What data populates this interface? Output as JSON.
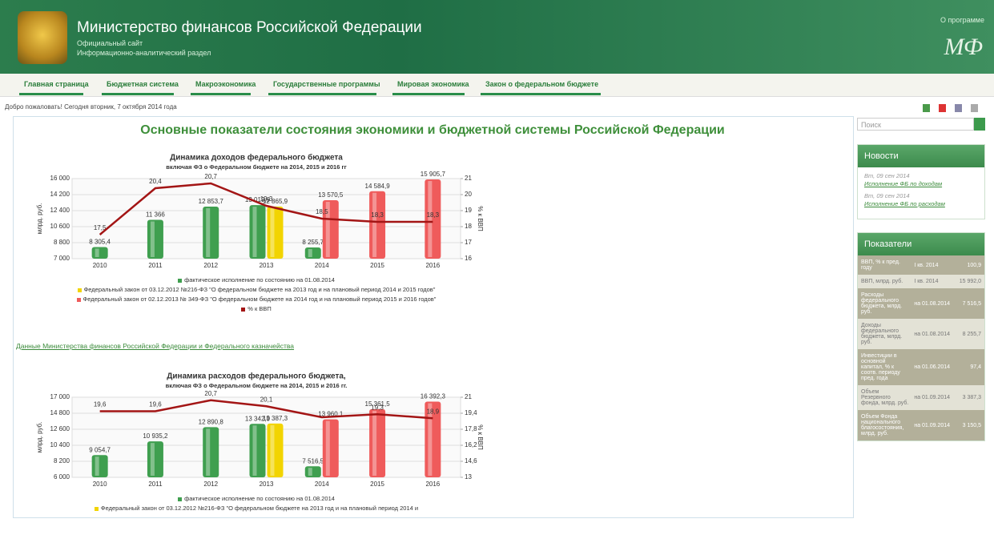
{
  "header": {
    "title": "Министерство финансов Российской Федерации",
    "subtitle": [
      "Официальный сайт",
      "Информационно-аналитический раздел"
    ],
    "about": "О программе",
    "logo": "МФ"
  },
  "nav": [
    "Главная страница",
    "Бюджетная система",
    "Макроэкономика",
    "Государственные программы",
    "Мировая экономика",
    "Закон о федеральном бюджете"
  ],
  "welcome": "Добро пожаловать! Сегодня вторник, 7 октября 2014 года",
  "heading": "Основные показатели состояния экономики и бюджетной системы Российской Федерации",
  "chart_data": [
    {
      "type": "bar",
      "title": "Динамика доходов федерального бюджета",
      "subtitle": "включая ФЗ о Федеральном бюджете на 2014, 2015 и 2016 гг",
      "y_label": "млрд. руб.",
      "y2_label": "% к ВВП",
      "categories": [
        "2010",
        "2011",
        "2012",
        "2013",
        "2014",
        "2015",
        "2016"
      ],
      "series": [
        {
          "name": "фактическое исполнение по состоянию на 01.08.2014",
          "type": "bar",
          "color": "#3f9f4f",
          "values": [
            8305.4,
            11366,
            12853.7,
            13019.9,
            8255.7,
            null,
            null
          ],
          "value_labels": [
            "8 305,4",
            "11 366",
            "12 853,7",
            "13 019,9",
            "8 255,7",
            null,
            null
          ]
        },
        {
          "name": "Федеральный закон от 03.12.2012 №216-ФЗ \"О федеральном бюджете на 2013 год и на плановый период 2014 и 2015 годов\"",
          "type": "bar",
          "color": "#f2d400",
          "values": [
            null,
            null,
            null,
            12865.9,
            null,
            null,
            null
          ],
          "value_labels": [
            null,
            null,
            null,
            "12 865,9",
            null,
            null,
            null
          ]
        },
        {
          "name": "Федеральный закон от 02.12.2013 № 349-ФЗ \"О федеральном бюджете на 2014 год и на плановый период 2015 и 2016 годов\"",
          "type": "bar",
          "color": "#ef5b5b",
          "values": [
            null,
            null,
            null,
            null,
            13570.5,
            14584.9,
            15905.7
          ],
          "value_labels": [
            null,
            null,
            null,
            null,
            "13 570,5",
            "14 584,9",
            "15 905,7"
          ]
        },
        {
          "name": "% к ВВП",
          "type": "line",
          "axis": "y2",
          "color": "#a31515",
          "values": [
            17.5,
            20.4,
            20.7,
            19.3,
            18.5,
            18.3,
            18.3
          ],
          "value_labels": [
            "17,5",
            "20,4",
            "20,7",
            "19,3",
            "18,5",
            "18,3",
            "18,3"
          ]
        }
      ],
      "ylim": [
        7000,
        16000
      ],
      "yticks": [
        {
          "value": 7000,
          "label": "7 000"
        },
        {
          "value": 8800,
          "label": "8 800"
        },
        {
          "value": 10600,
          "label": "10 600"
        },
        {
          "value": 12400,
          "label": "12 400"
        },
        {
          "value": 14200,
          "label": "14 200"
        },
        {
          "value": 16000,
          "label": "16 000"
        }
      ],
      "y2lim": [
        16,
        21
      ],
      "y2ticks": [
        16,
        17,
        18,
        19,
        20,
        21
      ],
      "grid": true
    },
    {
      "type": "bar",
      "title": "Динамика расходов федерального бюджета,",
      "subtitle": "включая ФЗ о Федеральном бюджете на 2014, 2015 и 2016 гг.",
      "y_label": "млрд. руб.",
      "y2_label": "% к ВВП",
      "categories": [
        "2010",
        "2011",
        "2012",
        "2013",
        "2014",
        "2015",
        "2016"
      ],
      "series": [
        {
          "name": "фактическое исполнение по состоянию на 01.08.2014",
          "type": "bar",
          "color": "#3f9f4f",
          "values": [
            9054.7,
            10935.2,
            12890.8,
            13342.9,
            7516.5,
            null,
            null
          ],
          "value_labels": [
            "9 054,7",
            "10 935,2",
            "12 890,8",
            "13 342,9",
            "7 516,5",
            null,
            null
          ]
        },
        {
          "name": "Федеральный закон от 03.12.2012 №216-ФЗ \"О федеральном бюджете на 2013 год и на плановый период 2014 и",
          "type": "bar",
          "color": "#f2d400",
          "values": [
            null,
            null,
            null,
            13387.3,
            null,
            null,
            null
          ],
          "value_labels": [
            null,
            null,
            null,
            "13 387,3",
            null,
            null,
            null
          ]
        },
        {
          "type": "bar",
          "color": "#ef5b5b",
          "values": [
            null,
            null,
            null,
            null,
            13960.1,
            15361.5,
            16392.3
          ],
          "value_labels": [
            null,
            null,
            null,
            null,
            "13 960,1",
            "15 361,5",
            "16 392,3"
          ]
        },
        {
          "type": "line",
          "axis": "y2",
          "color": "#a31515",
          "values": [
            19.6,
            19.6,
            20.7,
            20.1,
            19,
            19.3,
            18.9
          ],
          "value_labels": [
            "19,6",
            "19,6",
            "20,7",
            "20,1",
            null,
            "19,3",
            "18,9"
          ]
        }
      ],
      "ylim": [
        6000,
        17000
      ],
      "yticks": [
        {
          "value": 6000,
          "label": "6 000"
        },
        {
          "value": 8200,
          "label": "8 200"
        },
        {
          "value": 10400,
          "label": "10 400"
        },
        {
          "value": 12600,
          "label": "12 600"
        },
        {
          "value": 14800,
          "label": "14 800"
        },
        {
          "value": 17000,
          "label": "17 000"
        }
      ],
      "y2lim": [
        13,
        21
      ],
      "y2ticks": [
        13,
        {
          "value": 14.6,
          "label": "14,6"
        },
        {
          "value": 16.2,
          "label": "16,2"
        },
        {
          "value": 17.8,
          "label": "17,8"
        },
        {
          "value": 19.4,
          "label": "19,4"
        },
        21
      ],
      "grid": true
    }
  ],
  "source_link": "Данные Министерства финансов Российской Федерации и Федерального казначейства",
  "sidebar": {
    "search": "Поиск",
    "news": {
      "title": "Новости",
      "items": [
        {
          "date": "Вт, 09 сен 2014",
          "link": "Исполнение ФБ по доходам"
        },
        {
          "date": "Вт, 09 сен 2014",
          "link": "Исполнение ФБ по расходам"
        }
      ]
    },
    "indicators": {
      "title": "Показатели",
      "rows": [
        [
          "ВВП, % к пред. году",
          "I кв. 2014",
          "100,9"
        ],
        [
          "ВВП, млрд. руб.",
          "I кв. 2014",
          "15 992,0"
        ],
        [
          "Расходы федерального бюджета, млрд. руб.",
          "на 01.08.2014",
          "7 516,5"
        ],
        [
          "Доходы федерального бюджета, млрд. руб.",
          "на 01.08.2014",
          "8 255,7"
        ],
        [
          "Инвестиции в основной капитал, % к соотв. периоду пред. года",
          "на 01.06.2014",
          "97,4"
        ],
        [
          "Объем Резервного фонда, млрд. руб.",
          "на 01.09.2014",
          "3 387,3"
        ],
        [
          "Объем Фонда национального благосостояния, млрд. руб.",
          "на 01.09.2014",
          "3 150,5"
        ]
      ]
    }
  }
}
